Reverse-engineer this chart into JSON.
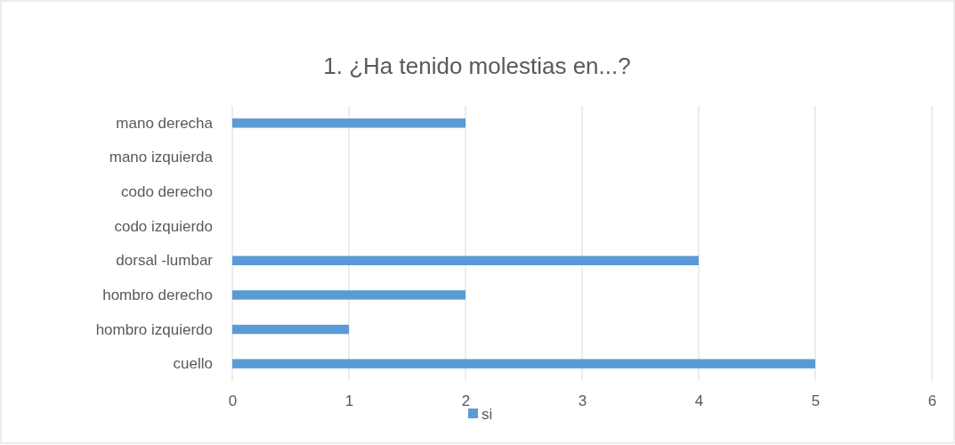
{
  "chart_data": {
    "type": "bar",
    "orientation": "horizontal",
    "title": "1. ¿Ha tenido molestias en...?",
    "categories": [
      "mano derecha",
      "mano izquierda",
      "codo derecho",
      "codo izquierdo",
      "dorsal -lumbar",
      "hombro derecho",
      "hombro izquierdo",
      "cuello"
    ],
    "series": [
      {
        "name": "si",
        "color": "#5b9bd5",
        "values": [
          2,
          0,
          0,
          0,
          4,
          2,
          1,
          5
        ]
      }
    ],
    "xlim": [
      0,
      6
    ],
    "xticks": [
      0,
      1,
      2,
      3,
      4,
      5,
      6
    ],
    "grid": "x",
    "legend": "bottom"
  }
}
